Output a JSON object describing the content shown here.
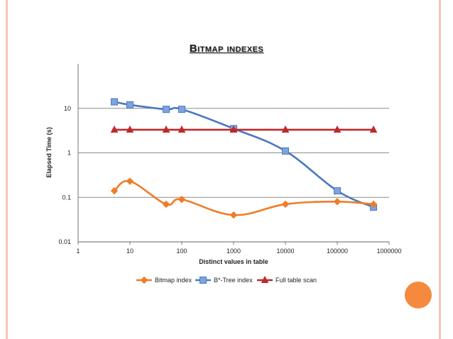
{
  "slide": {
    "title": "Bitmap indexes",
    "frame_color": "#f3c7b3",
    "accent_color": "#f58a3e"
  },
  "chart_data": {
    "type": "line",
    "title": "",
    "xlabel": "Distinct values in table",
    "ylabel": "Elapsed Time (s)",
    "x_scale": "log",
    "y_scale": "log",
    "xlim": [
      1,
      1000000
    ],
    "ylim": [
      0.01,
      100
    ],
    "x_ticks": [
      "1",
      "10",
      "100",
      "1000",
      "10000",
      "100000",
      "1000000"
    ],
    "y_ticks": [
      "0.01",
      "0.1",
      "1",
      "10"
    ],
    "grid": "horizontal",
    "legend_position": "bottom",
    "series": [
      {
        "name": "Bitmap index",
        "color": "#f07c27",
        "marker": "diamond",
        "smooth": true,
        "x": [
          5,
          10,
          50,
          100,
          1000,
          10000,
          100000,
          500000
        ],
        "y": [
          0.14,
          0.23,
          0.07,
          0.09,
          0.04,
          0.07,
          0.08,
          0.07
        ]
      },
      {
        "name": "B*-Tree index",
        "color": "#4a78c0",
        "marker": "square",
        "smooth": true,
        "x": [
          5,
          10,
          50,
          100,
          1000,
          10000,
          100000,
          500000
        ],
        "y": [
          14,
          12,
          9.5,
          9.5,
          3.5,
          1.1,
          0.14,
          0.06
        ]
      },
      {
        "name": "Full table scan",
        "color": "#c0282a",
        "marker": "triangle",
        "smooth": false,
        "x": [
          5,
          10,
          50,
          100,
          1000,
          10000,
          100000,
          500000
        ],
        "y": [
          3.3,
          3.3,
          3.3,
          3.3,
          3.3,
          3.3,
          3.3,
          3.3
        ]
      }
    ]
  }
}
